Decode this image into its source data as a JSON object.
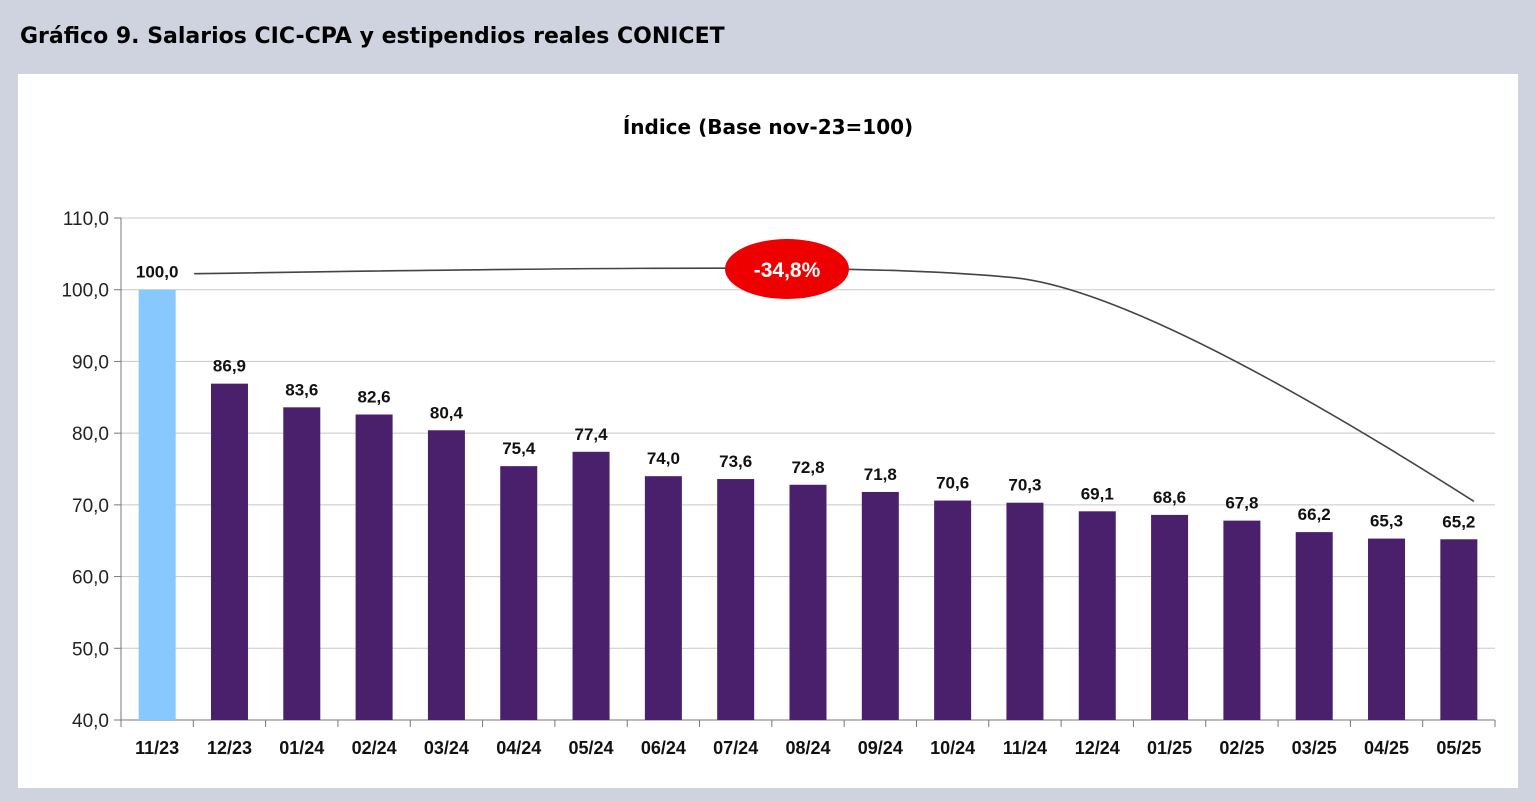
{
  "figure_title": "Gráfico 9. Salarios CIC-CPA y estipendios reales CONICET",
  "chart_data": {
    "type": "bar",
    "title": "Índice (Base nov-23=100)",
    "xlabel": "",
    "ylabel": "",
    "ylim": [
      40,
      110
    ],
    "yticks": [
      40,
      50,
      60,
      70,
      80,
      90,
      100,
      110
    ],
    "ytick_labels": [
      "40,0",
      "50,0",
      "60,0",
      "70,0",
      "80,0",
      "90,0",
      "100,0",
      "110,0"
    ],
    "grid": true,
    "legend": "none",
    "categories": [
      "11/23",
      "12/23",
      "01/24",
      "02/24",
      "03/24",
      "04/24",
      "05/24",
      "06/24",
      "07/24",
      "08/24",
      "09/24",
      "10/24",
      "11/24",
      "12/24",
      "01/25",
      "02/25",
      "03/25",
      "04/25",
      "05/25"
    ],
    "values": [
      100.0,
      86.9,
      83.6,
      82.6,
      80.4,
      75.4,
      77.4,
      74.0,
      73.6,
      72.8,
      71.8,
      70.6,
      70.3,
      69.1,
      68.6,
      67.8,
      66.2,
      65.3,
      65.2
    ],
    "value_labels": [
      "100,0",
      "86,9",
      "83,6",
      "82,6",
      "80,4",
      "75,4",
      "77,4",
      "74,0",
      "73,6",
      "72,8",
      "71,8",
      "70,6",
      "70,3",
      "69,1",
      "68,6",
      "67,8",
      "66,2",
      "65,3",
      "65,2"
    ],
    "colors": {
      "first_bar": "#87c8ff",
      "bars": "#4a1f6b",
      "grid": "#c8c8c8",
      "callout": "#ee0000"
    },
    "annotation": {
      "text": "-34,8%",
      "from_category": "11/23",
      "to_category": "05/25"
    }
  }
}
